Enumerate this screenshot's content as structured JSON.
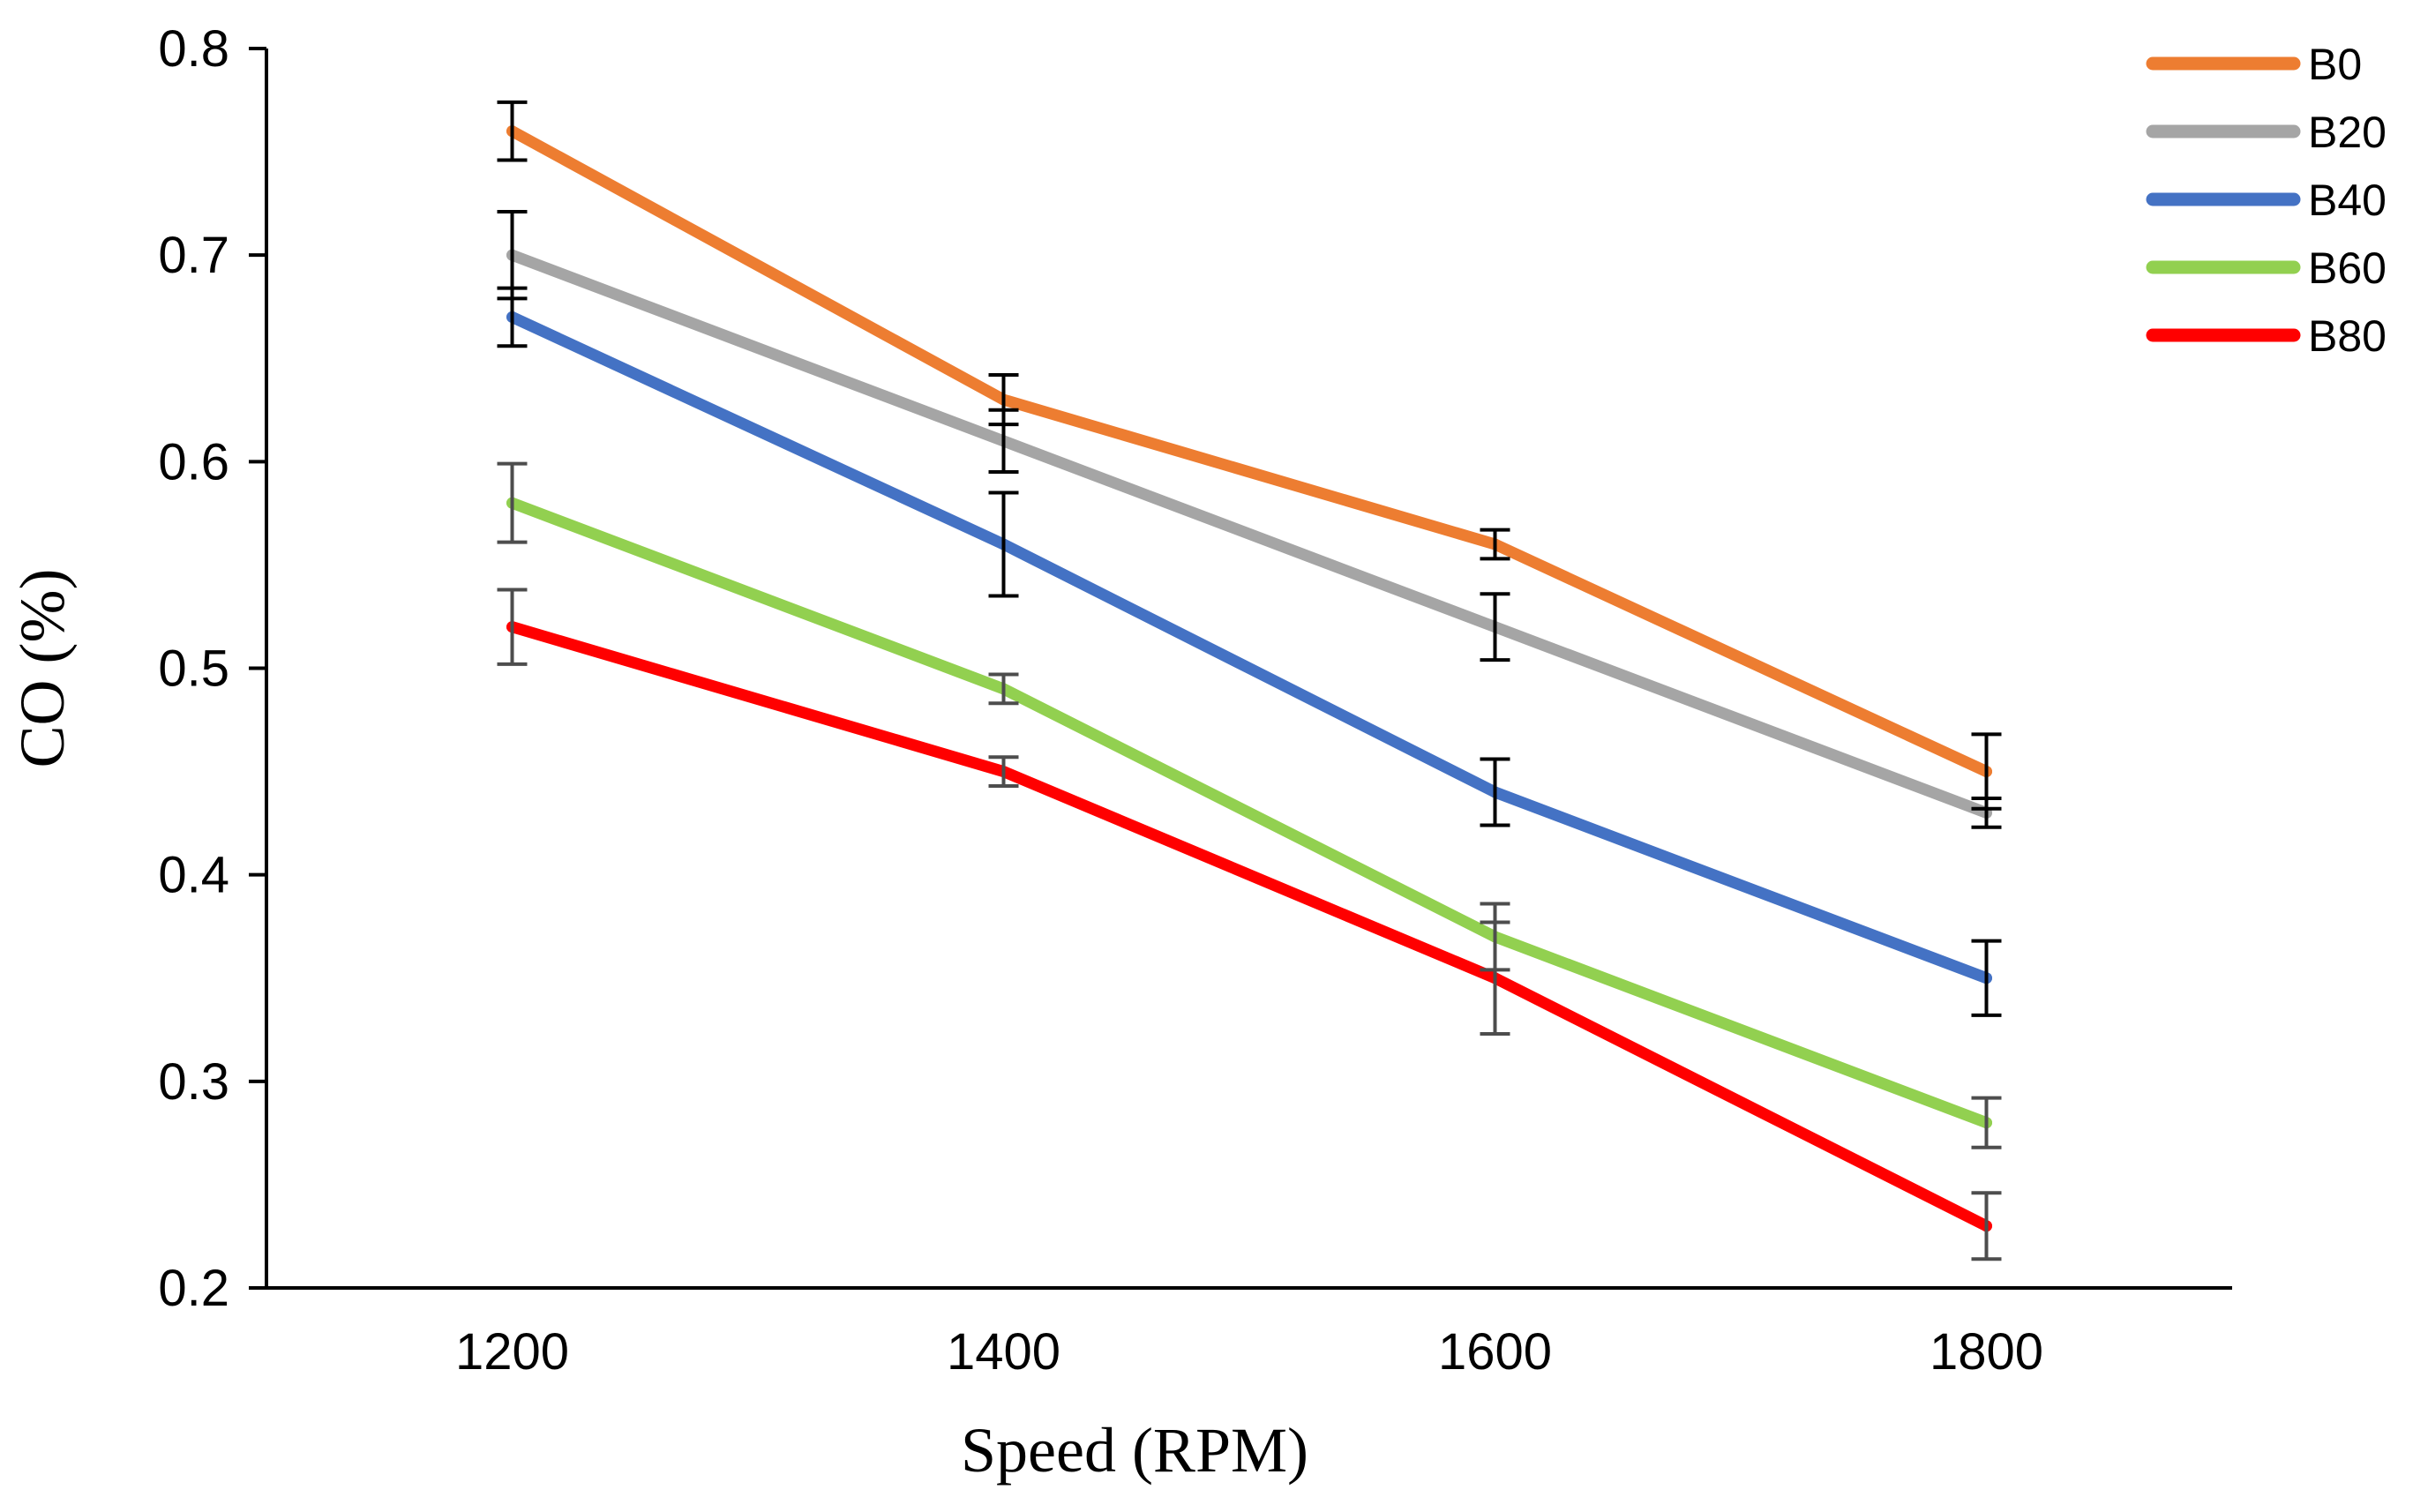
{
  "chart_data": {
    "type": "line",
    "title": "",
    "xlabel": "Speed (RPM)",
    "ylabel": "CO (%)",
    "categories": [
      "1200",
      "1400",
      "1600",
      "1800"
    ],
    "x": [
      1200,
      1400,
      1600,
      1800
    ],
    "xlim": [
      1100,
      1900
    ],
    "ylim": [
      0.2,
      0.8
    ],
    "yticks": [
      0.2,
      0.3,
      0.4,
      0.5,
      0.6,
      0.7,
      0.8
    ],
    "ytick_labels": [
      "0.2",
      "0.3",
      "0.4",
      "0.5",
      "0.6",
      "0.7",
      "0.8"
    ],
    "grid": false,
    "legend_position": "top-right",
    "error_bar_colors": [
      "#000000",
      "#000000",
      "#000000",
      "#4d4d4d",
      "#4d4d4d"
    ],
    "series": [
      {
        "name": "B0",
        "color": "#ed7d31",
        "values": [
          0.76,
          0.63,
          0.56,
          0.45
        ],
        "errors": [
          0.014,
          0.012,
          0.007,
          0.018
        ]
      },
      {
        "name": "B20",
        "color": "#a5a5a5",
        "values": [
          0.7,
          0.61,
          0.52,
          0.43
        ],
        "errors": [
          0.021,
          0.015,
          0.016,
          0.007
        ]
      },
      {
        "name": "B40",
        "color": "#4472c4",
        "values": [
          0.67,
          0.56,
          0.44,
          0.35
        ],
        "errors": [
          0.014,
          0.025,
          0.016,
          0.018
        ]
      },
      {
        "name": "B60",
        "color": "#92d050",
        "values": [
          0.58,
          0.49,
          0.37,
          0.28
        ],
        "errors": [
          0.019,
          0.007,
          0.016,
          0.012
        ]
      },
      {
        "name": "B80",
        "color": "#ff0000",
        "values": [
          0.52,
          0.45,
          0.35,
          0.23
        ],
        "errors": [
          0.018,
          0.007,
          0.027,
          0.016
        ]
      }
    ]
  }
}
